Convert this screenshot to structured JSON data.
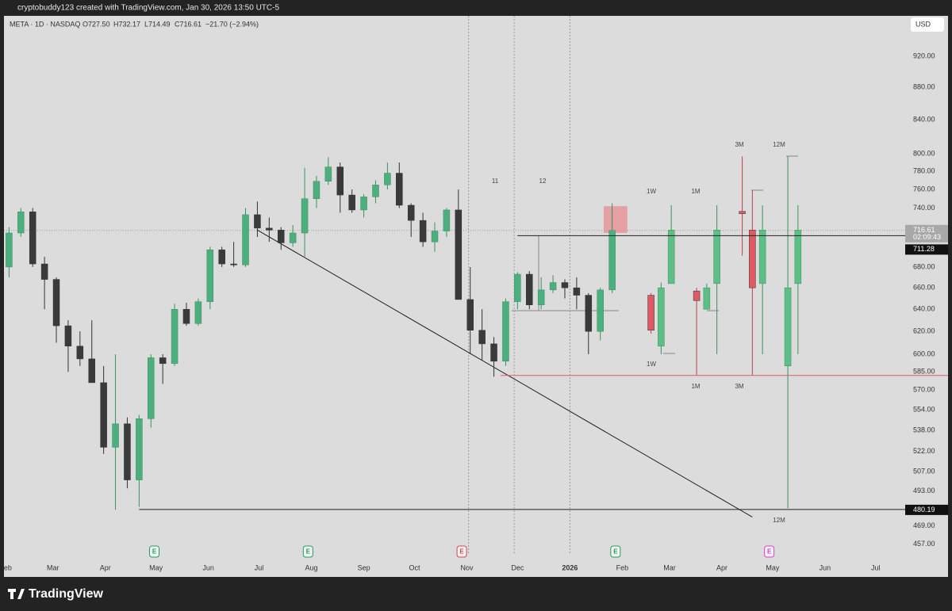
{
  "chart_data": {
    "type": "candlestick",
    "watermark": "cryptobuddy123 created with TradingView.com, Jan 30, 2026 13:50 UTC-5",
    "legend_text": [
      "META · 1D · NASDAQ",
      "O727.50",
      "H732.17",
      "L714.49",
      "C716.61",
      "−21.70 (−2.94%)"
    ],
    "currency": "USD",
    "brand": "TradingView",
    "colors": {
      "up": "#4caf7d",
      "down": "#3a3a3a",
      "proj_up": "#5cbf85",
      "proj_down": "#e05a64"
    },
    "x": [
      "2025-02-03",
      "2025-02-10",
      "2025-02-17",
      "2025-02-24",
      "2025-03-03",
      "2025-03-10",
      "2025-03-17",
      "2025-03-24",
      "2025-03-31",
      "2025-04-07",
      "2025-04-14",
      "2025-04-21",
      "2025-04-28",
      "2025-05-05",
      "2025-05-12",
      "2025-05-19",
      "2025-05-26",
      "2025-06-02",
      "2025-06-09",
      "2025-06-16",
      "2025-06-23",
      "2025-06-30",
      "2025-07-07",
      "2025-07-14",
      "2025-07-21",
      "2025-07-28",
      "2025-08-04",
      "2025-08-11",
      "2025-08-18",
      "2025-08-25",
      "2025-09-01",
      "2025-09-08",
      "2025-09-15",
      "2025-09-22",
      "2025-09-29",
      "2025-10-06",
      "2025-10-13",
      "2025-10-20",
      "2025-10-27",
      "2025-11-03",
      "2025-11-10",
      "2025-11-17",
      "2025-11-24",
      "2025-12-01",
      "2025-12-08",
      "2025-12-15",
      "2025-12-22",
      "2025-12-29",
      "2026-01-05",
      "2026-01-12",
      "2026-01-19",
      "2026-01-26"
    ],
    "open": [
      680,
      714,
      736,
      683,
      668,
      625,
      607,
      596,
      576,
      525,
      543,
      501,
      547,
      597,
      592,
      640,
      627,
      647,
      697,
      683,
      682,
      733,
      719,
      717,
      704,
      714,
      750,
      769,
      785,
      754,
      738,
      752,
      765,
      778,
      743,
      727,
      705,
      716,
      738,
      649,
      621,
      609,
      594,
      647,
      673,
      644,
      658,
      665,
      660,
      653,
      620,
      658
    ],
    "high": [
      720,
      740,
      740,
      690,
      670,
      630,
      620,
      630,
      590,
      600,
      548,
      550,
      600,
      600,
      645,
      646,
      650,
      700,
      700,
      705,
      740,
      747,
      730,
      720,
      722,
      784,
      775,
      796,
      790,
      760,
      755,
      770,
      790,
      790,
      745,
      735,
      725,
      740,
      760,
      680,
      640,
      615,
      650,
      675,
      676,
      670,
      672,
      668,
      670,
      655,
      660,
      745
    ],
    "low": [
      670,
      710,
      680,
      640,
      610,
      585,
      590,
      576,
      520,
      480,
      495,
      482,
      540,
      575,
      590,
      625,
      625,
      640,
      680,
      680,
      680,
      710,
      705,
      697,
      700,
      690,
      740,
      765,
      735,
      735,
      730,
      745,
      760,
      740,
      710,
      700,
      695,
      710,
      650,
      600,
      595,
      581,
      590,
      640,
      640,
      640,
      655,
      650,
      640,
      600,
      612,
      655
    ],
    "close": [
      714,
      736,
      683,
      668,
      625,
      607,
      596,
      576,
      525,
      543,
      501,
      547,
      597,
      592,
      640,
      627,
      647,
      697,
      683,
      682,
      733,
      719,
      717,
      704,
      714,
      750,
      769,
      785,
      754,
      738,
      752,
      765,
      778,
      743,
      727,
      705,
      716,
      738,
      649,
      621,
      609,
      594,
      647,
      673,
      644,
      658,
      665,
      660,
      653,
      620,
      658,
      716.61
    ],
    "projections": {
      "x": [
        "2026-02-18",
        "2026-02-24",
        "2026-03-02",
        "2026-03-17",
        "2026-03-23",
        "2026-03-29",
        "2026-04-13",
        "2026-04-19",
        "2026-04-25",
        "2026-05-10",
        "2026-05-16"
      ],
      "open": [
        653,
        607,
        664,
        657,
        640,
        664,
        736.5,
        717,
        664,
        590,
        664
      ],
      "high": [
        655,
        665,
        743,
        660,
        664,
        743,
        797,
        759,
        743,
        797,
        743
      ],
      "low": [
        618,
        600,
        664,
        582,
        640,
        600,
        691,
        582,
        600,
        481,
        600
      ],
      "close": [
        621,
        660,
        717,
        648,
        660,
        717,
        734,
        660,
        717,
        660,
        717
      ]
    },
    "xlim": [
      "2025-01-31",
      "2026-07-18"
    ],
    "xticks": [
      {
        "value": "2025-02-01",
        "label": "Feb"
      },
      {
        "value": "2025-03-01",
        "label": "Mar"
      },
      {
        "value": "2025-04-01",
        "label": "Apr"
      },
      {
        "value": "2025-05-01",
        "label": "May"
      },
      {
        "value": "2025-06-01",
        "label": "Jun"
      },
      {
        "value": "2025-07-01",
        "label": "Jul"
      },
      {
        "value": "2025-08-01",
        "label": "Aug"
      },
      {
        "value": "2025-09-01",
        "label": "Sep"
      },
      {
        "value": "2025-10-01",
        "label": "Oct"
      },
      {
        "value": "2025-11-01",
        "label": "Nov"
      },
      {
        "value": "2025-12-01",
        "label": "Dec"
      },
      {
        "value": "2026-01-01",
        "label": "2026"
      },
      {
        "value": "2026-02-01",
        "label": "Feb"
      },
      {
        "value": "2026-03-01",
        "label": "Mar"
      },
      {
        "value": "2026-04-01",
        "label": "Apr"
      },
      {
        "value": "2026-05-01",
        "label": "May"
      },
      {
        "value": "2026-06-01",
        "label": "Jun"
      },
      {
        "value": "2026-07-01",
        "label": "Jul"
      }
    ],
    "ylim": [
      450,
      975
    ],
    "log_scale": true,
    "grid": false,
    "yticks": [
      {
        "value": 920,
        "label": "920.00"
      },
      {
        "value": 880,
        "label": "880.00"
      },
      {
        "value": 840,
        "label": "840.00"
      },
      {
        "value": 800,
        "label": "800.00"
      },
      {
        "value": 780,
        "label": "780.00"
      },
      {
        "value": 760,
        "label": "760.00"
      },
      {
        "value": 740,
        "label": "740.00"
      },
      {
        "value": 680,
        "label": "680.00"
      },
      {
        "value": 660,
        "label": "660.00"
      },
      {
        "value": 640,
        "label": "640.00"
      },
      {
        "value": 620,
        "label": "620.00"
      },
      {
        "value": 600,
        "label": "600.00"
      },
      {
        "value": 585,
        "label": "585.00"
      },
      {
        "value": 570,
        "label": "570.00"
      },
      {
        "value": 554,
        "label": "554.00"
      },
      {
        "value": 538,
        "label": "538.00"
      },
      {
        "value": 522,
        "label": "522.00"
      },
      {
        "value": 507,
        "label": "507.00"
      },
      {
        "value": 493,
        "label": "493.00"
      },
      {
        "value": 469,
        "label": "469.00"
      },
      {
        "value": 457,
        "label": "457.00"
      }
    ],
    "last_price": {
      "value": 716.61,
      "label": "716.61",
      "countdown": "02:09:43"
    },
    "price_labels": [
      {
        "value": 711.28,
        "label": "711.28"
      },
      {
        "value": 480.19,
        "label": "480.19"
      }
    ],
    "levels": [
      {
        "value": 711.28,
        "from": "2025-12-01",
        "color": "#222222"
      },
      {
        "value": 480.19,
        "from": "2025-04-21",
        "color": "#222222"
      },
      {
        "value": 582,
        "from": "2025-11-21",
        "color": "#e05a64"
      }
    ],
    "vlines": [
      "2025-11-02",
      "2025-11-29",
      "2026-01-01"
    ],
    "highlight_box": {
      "x": [
        "2026-01-21",
        "2026-02-04"
      ],
      "y": [
        714,
        742
      ],
      "color": "#e8868c"
    },
    "trendline": {
      "x": [
        "2025-06-30",
        "2026-04-19"
      ],
      "y": [
        717,
        475
      ]
    },
    "annotations": [
      "11",
      "12",
      "1W",
      "1M",
      "3M",
      "12M",
      "1W",
      "1M",
      "3M",
      "12M"
    ],
    "earnings": [
      {
        "x": "2025-04-30",
        "label": "E",
        "color": "#1e9e5e"
      },
      {
        "x": "2025-07-30",
        "label": "E",
        "color": "#1e9e5e"
      },
      {
        "x": "2025-10-29",
        "label": "E",
        "color": "#d9434f"
      },
      {
        "x": "2026-01-28",
        "label": "E",
        "color": "#1e9e5e"
      },
      {
        "x": "2026-04-29",
        "label": "E",
        "color": "#d63fd6"
      }
    ]
  }
}
